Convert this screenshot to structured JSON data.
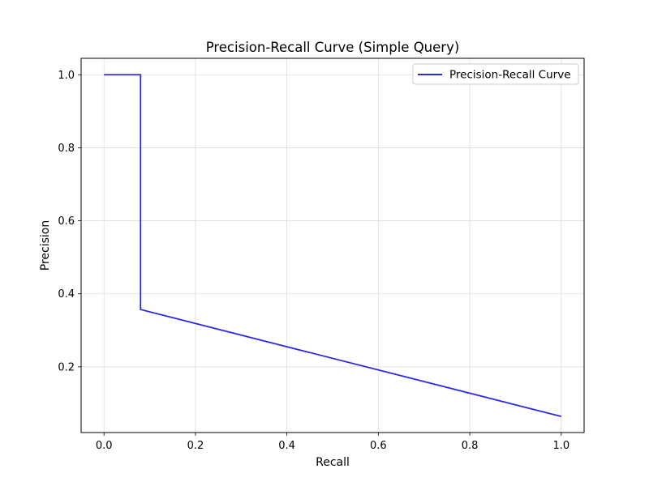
{
  "chart_data": {
    "type": "line",
    "title": "Precision-Recall Curve (Simple Query)",
    "xlabel": "Recall",
    "ylabel": "Precision",
    "xlim": [
      -0.05,
      1.05
    ],
    "ylim": [
      0.02,
      1.045
    ],
    "xticks": [
      0.0,
      0.2,
      0.4,
      0.6,
      0.8,
      1.0
    ],
    "xtick_labels": [
      "0.0",
      "0.2",
      "0.4",
      "0.6",
      "0.8",
      "1.0"
    ],
    "yticks": [
      0.2,
      0.4,
      0.6,
      0.8,
      1.0
    ],
    "ytick_labels": [
      "0.2",
      "0.4",
      "0.6",
      "0.8",
      "1.0"
    ],
    "grid": true,
    "legend_position": "upper right",
    "series": [
      {
        "name": "Precision-Recall Curve",
        "color": "#2a2ae6",
        "x": [
          0.0,
          0.08,
          0.08,
          1.0
        ],
        "y": [
          1.0,
          1.0,
          0.357,
          0.064
        ]
      }
    ]
  }
}
